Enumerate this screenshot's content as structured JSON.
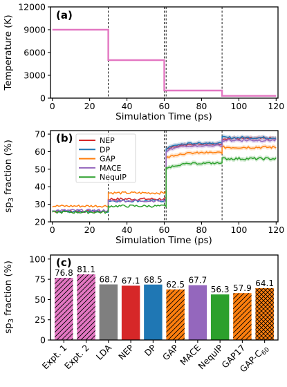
{
  "chart_data": [
    {
      "type": "line",
      "panel_label": "(a)",
      "xlabel": "Simulation Time (ps)",
      "ylabel": "Temperature (K)",
      "xlim": [
        -1,
        121
      ],
      "ylim": [
        0,
        12000
      ],
      "xticks": [
        0,
        20,
        40,
        60,
        80,
        100,
        120
      ],
      "yticks": [
        0,
        3000,
        6000,
        9000,
        12000
      ],
      "color": "#e377c2",
      "vlines": [
        30,
        60,
        61,
        91
      ],
      "series": [
        {
          "x": [
            0,
            30,
            30,
            60,
            60,
            61,
            61,
            91,
            91,
            120
          ],
          "y": [
            9000,
            9000,
            5000,
            5000,
            1000,
            1000,
            1000,
            1000,
            300,
            300
          ]
        }
      ]
    },
    {
      "type": "line",
      "panel_label": "(b)",
      "xlabel": "Simulation Time (ps)",
      "ylabel": "sp3 fraction (%)",
      "xlim": [
        -1,
        121
      ],
      "ylim": [
        20,
        72
      ],
      "xticks": [
        0,
        20,
        40,
        60,
        80,
        100,
        120
      ],
      "yticks": [
        20,
        30,
        40,
        50,
        60,
        70
      ],
      "vlines": [
        30,
        60,
        61,
        91
      ],
      "legend_placement": "top-left",
      "series": [
        {
          "name": "NEP",
          "color": "#d62728",
          "levels": [
            26,
            33,
            33,
            64.5,
            67.5
          ]
        },
        {
          "name": "DP",
          "color": "#1f77b4",
          "levels": [
            26,
            32,
            32,
            65,
            68
          ]
        },
        {
          "name": "GAP",
          "color": "#ff7f0e",
          "levels": [
            29,
            36.5,
            36.5,
            59.5,
            62.5
          ]
        },
        {
          "name": "MACE",
          "color": "#9467bd",
          "levels": [
            26.5,
            32,
            32,
            63.5,
            66.5
          ]
        },
        {
          "name": "NequIP",
          "color": "#2ca02c",
          "levels": [
            25.5,
            29,
            29,
            53.5,
            56
          ]
        }
      ]
    },
    {
      "type": "bar",
      "panel_label": "(c)",
      "ylabel": "sp3 fraction (%)",
      "ylim": [
        0,
        105
      ],
      "yticks": [
        0,
        25,
        50,
        75,
        100
      ],
      "categories": [
        "Expt. 1",
        "Expt. 2",
        "LDA",
        "NEP",
        "DP",
        "GAP",
        "MACE",
        "NequIP",
        "GAP17",
        "GAP-C"
      ],
      "values": [
        76.8,
        81.1,
        68.7,
        67.1,
        68.5,
        62.5,
        67.7,
        56.3,
        57.9,
        64.1
      ],
      "value_labels": [
        "76.8",
        "81.1",
        "68.7",
        "67.1",
        "68.5",
        "62.5",
        "67.7",
        "56.3",
        "57.9",
        "64.1"
      ],
      "colors": [
        "#e377c2",
        "#e377c2",
        "#7f7f7f",
        "#d62728",
        "#1f77b4",
        "#ff7f0e",
        "#9467bd",
        "#2ca02c",
        "#ff7f0e",
        "#ff7f0e"
      ],
      "hatches": [
        "diag",
        "diag",
        "none",
        "none",
        "none",
        "diag",
        "none",
        "none",
        "diag",
        "cross"
      ]
    }
  ],
  "text": {
    "ylabel_sp_prefix": "sp",
    "ylabel_sp_sub": "3",
    "ylabel_sp_suffix": " fraction (%)",
    "last_cat_sub": "60"
  }
}
